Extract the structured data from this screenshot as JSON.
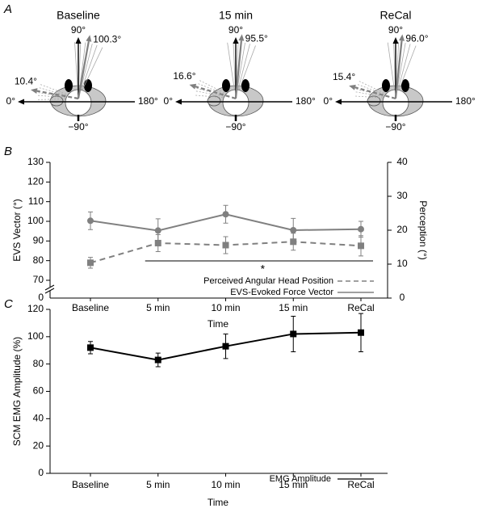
{
  "chart_data": [
    {
      "type": "vector",
      "panel": "A",
      "axis_labels": {
        "up": "90°",
        "left": "0°",
        "right": "180°",
        "down": "−90°"
      },
      "evs_color": "#808080",
      "perception_color": "#808080",
      "diagrams": [
        {
          "title": "Baseline",
          "evs_angle": 100.3,
          "evs_label": "100.3°",
          "perception_angle": 10.4,
          "perception_label": "10.4°"
        },
        {
          "title": "15 min",
          "evs_angle": 95.5,
          "evs_label": "95.5°",
          "perception_angle": 16.6,
          "perception_label": "16.6°"
        },
        {
          "title": "ReCal",
          "evs_angle": 96.0,
          "evs_label": "96.0°",
          "perception_angle": 15.4,
          "perception_label": "15.4°"
        }
      ]
    },
    {
      "type": "line",
      "panel": "B",
      "categories": [
        "Baseline",
        "5 min",
        "10 min",
        "15 min",
        "ReCal"
      ],
      "x_label": "Time",
      "y_label": "EVS Vector (°)",
      "y2_label": "Perception (°)",
      "ylim": [
        70,
        130
      ],
      "yticks": [
        70,
        80,
        90,
        100,
        110,
        120,
        130
      ],
      "y_axis_break_label": "0",
      "y2lim": [
        0,
        40
      ],
      "y2ticks": [
        0,
        10,
        20,
        30,
        40
      ],
      "annotation": "*",
      "series": [
        {
          "name": "Perceived Angular Head Position",
          "color": "#808080",
          "axis": "y2",
          "dashed": true,
          "marker": "square",
          "values": [
            10.4,
            16.2,
            15.6,
            16.6,
            15.4
          ],
          "errors": [
            1.6,
            2.5,
            2.5,
            2.5,
            3.0
          ]
        },
        {
          "name": "EVS-Evoked Force Vector",
          "color": "#808080",
          "dashed": false,
          "marker": "circle",
          "values": [
            100.3,
            95.3,
            103.6,
            95.5,
            96.0
          ],
          "errors": [
            4.5,
            6.0,
            4.5,
            6.0,
            4.0
          ]
        }
      ]
    },
    {
      "type": "line",
      "panel": "C",
      "categories": [
        "Baseline",
        "5 min",
        "10 min",
        "15 min",
        "ReCal"
      ],
      "x_label": "Time",
      "y_label": "SCM EMG Amplitude (%)",
      "ylim": [
        0,
        120
      ],
      "yticks": [
        0,
        20,
        40,
        60,
        80,
        100,
        120
      ],
      "series": [
        {
          "name": "EMG Amplitude",
          "color": "#000000",
          "dashed": false,
          "marker": "square",
          "values": [
            92,
            83,
            93,
            102,
            103
          ],
          "errors": [
            4.5,
            5,
            9,
            13,
            14
          ]
        }
      ]
    }
  ]
}
